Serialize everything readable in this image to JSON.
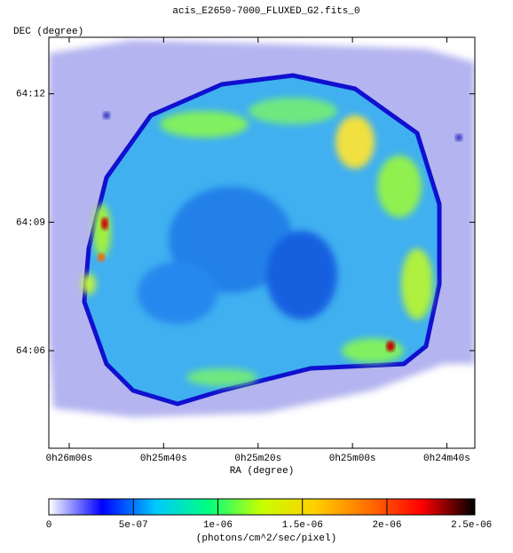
{
  "chart_data": {
    "type": "image",
    "title": "acis_E2650-7000_FLUXED_G2.fits_0",
    "x_label": "RA (degree)",
    "y_label": "DEC (degree)",
    "xlim": [
      6.518,
      6.142
    ],
    "ylim": [
      64.062,
      64.222
    ],
    "xticks": [
      {
        "value": 6.5,
        "label": "0h26m00s"
      },
      {
        "value": 6.4167,
        "label": "0h25m40s"
      },
      {
        "value": 6.3333,
        "label": "0h25m20s"
      },
      {
        "value": 6.25,
        "label": "0h25m00s"
      },
      {
        "value": 6.1667,
        "label": "0h24m40s"
      }
    ],
    "yticks": [
      {
        "value": 64.2,
        "label": "64:12"
      },
      {
        "value": 64.15,
        "label": "64:09"
      },
      {
        "value": 64.1,
        "label": "64:06"
      }
    ],
    "colorbar": {
      "label": "(photons/cm^2/sec/pixel)",
      "lim": [
        0,
        2.52e-06
      ],
      "ticks": [
        0,
        {
          "value": 5e-07,
          "label": "5e-07"
        },
        {
          "value": 1e-06,
          "label": "1e-06"
        },
        {
          "value": 1.5e-06,
          "label": "1.5e-06"
        },
        {
          "value": 2e-06,
          "label": "2e-06"
        },
        {
          "value": 2.5e-06,
          "label": "2.5e-06"
        }
      ],
      "colormap": [
        "#ffffff",
        "#0000ff",
        "#00c8ff",
        "#00ff80",
        "#c8ff00",
        "#ffd000",
        "#ff7000",
        "#ff0000",
        "#000000"
      ]
    }
  }
}
